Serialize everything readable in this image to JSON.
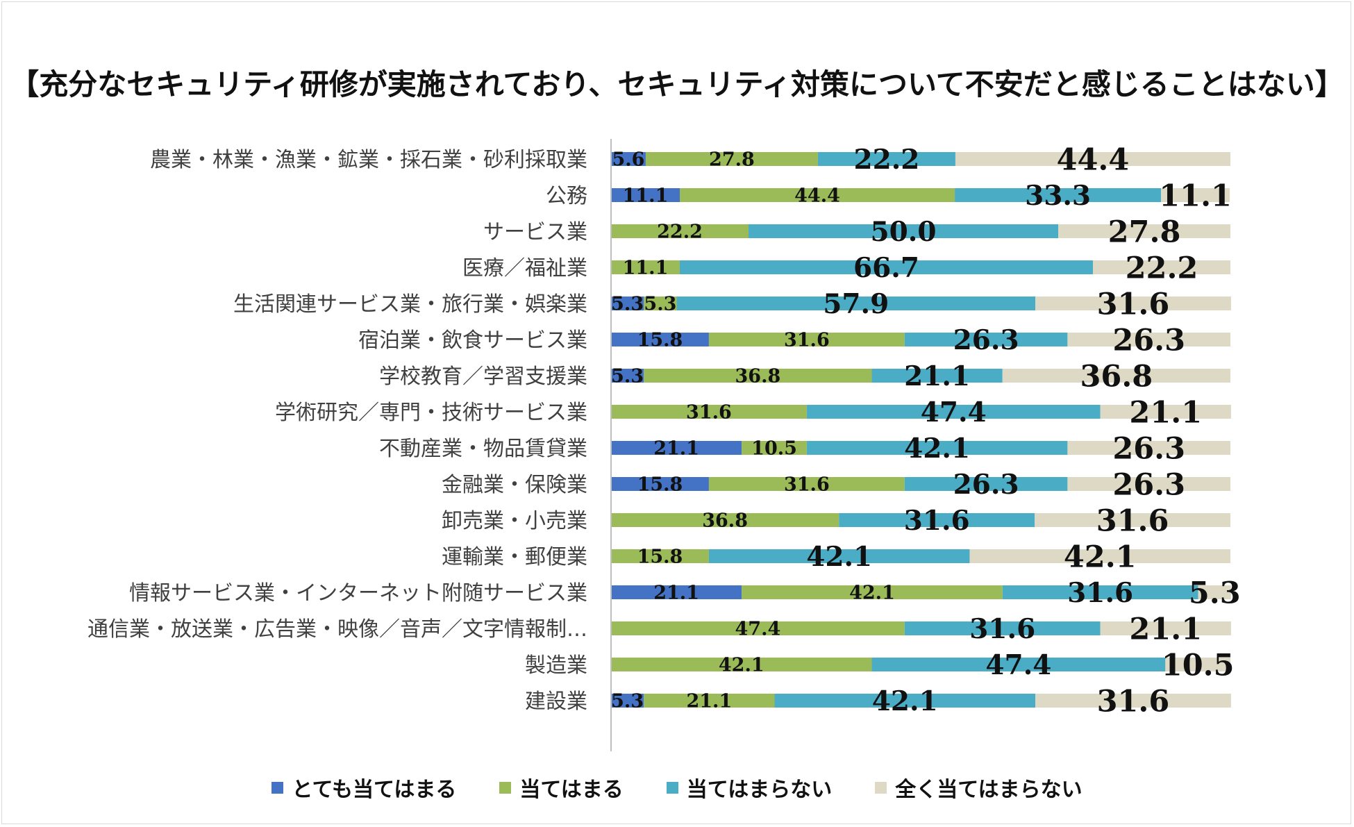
{
  "chart_data": {
    "type": "bar",
    "stacked": true,
    "orientation": "horizontal",
    "title": "【充分なセキュリティ研修が実施されており、セキュリティ対策について不安だと感じることはない】",
    "xlim": [
      0,
      100
    ],
    "grid": false,
    "legend_position": "bottom",
    "categories": [
      "農業・林業・漁業・鉱業・採石業・砂利採取業",
      "公務",
      "サービス業",
      "医療／福祉業",
      "生活関連サービス業・旅行業・娯楽業",
      "宿泊業・飲食サービス業",
      "学校教育／学習支援業",
      "学術研究／専門・技術サービス業",
      "不動産業・物品賃貸業",
      "金融業・保険業",
      "卸売業・小売業",
      "運輸業・郵便業",
      "情報サービス業・インターネット附随サービス業",
      "通信業・放送業・広告業・映像／音声／文字情報制…",
      "製造業",
      "建設業"
    ],
    "series": [
      {
        "name": "とても当てはまる",
        "color": "#4472c4",
        "values": [
          5.6,
          11.1,
          0,
          0,
          5.3,
          15.8,
          5.3,
          0,
          21.1,
          15.8,
          0,
          0,
          21.1,
          0,
          0,
          5.3
        ]
      },
      {
        "name": "当てはまる",
        "color": "#9bbb59",
        "values": [
          27.8,
          44.4,
          22.2,
          11.1,
          5.3,
          31.6,
          36.8,
          31.6,
          10.5,
          31.6,
          36.8,
          15.8,
          42.1,
          47.4,
          42.1,
          21.1
        ]
      },
      {
        "name": "当てはまらない",
        "color": "#4bacc6",
        "values": [
          22.2,
          33.3,
          50.0,
          66.7,
          57.9,
          26.3,
          21.1,
          47.4,
          42.1,
          26.3,
          31.6,
          42.1,
          31.6,
          31.6,
          47.4,
          42.1
        ]
      },
      {
        "name": "全く当てはまらない",
        "color": "#ddd9c4",
        "values": [
          44.4,
          11.1,
          27.8,
          22.2,
          31.6,
          26.3,
          36.8,
          21.1,
          26.3,
          26.3,
          31.6,
          42.1,
          5.3,
          21.1,
          10.5,
          31.6
        ]
      }
    ]
  }
}
